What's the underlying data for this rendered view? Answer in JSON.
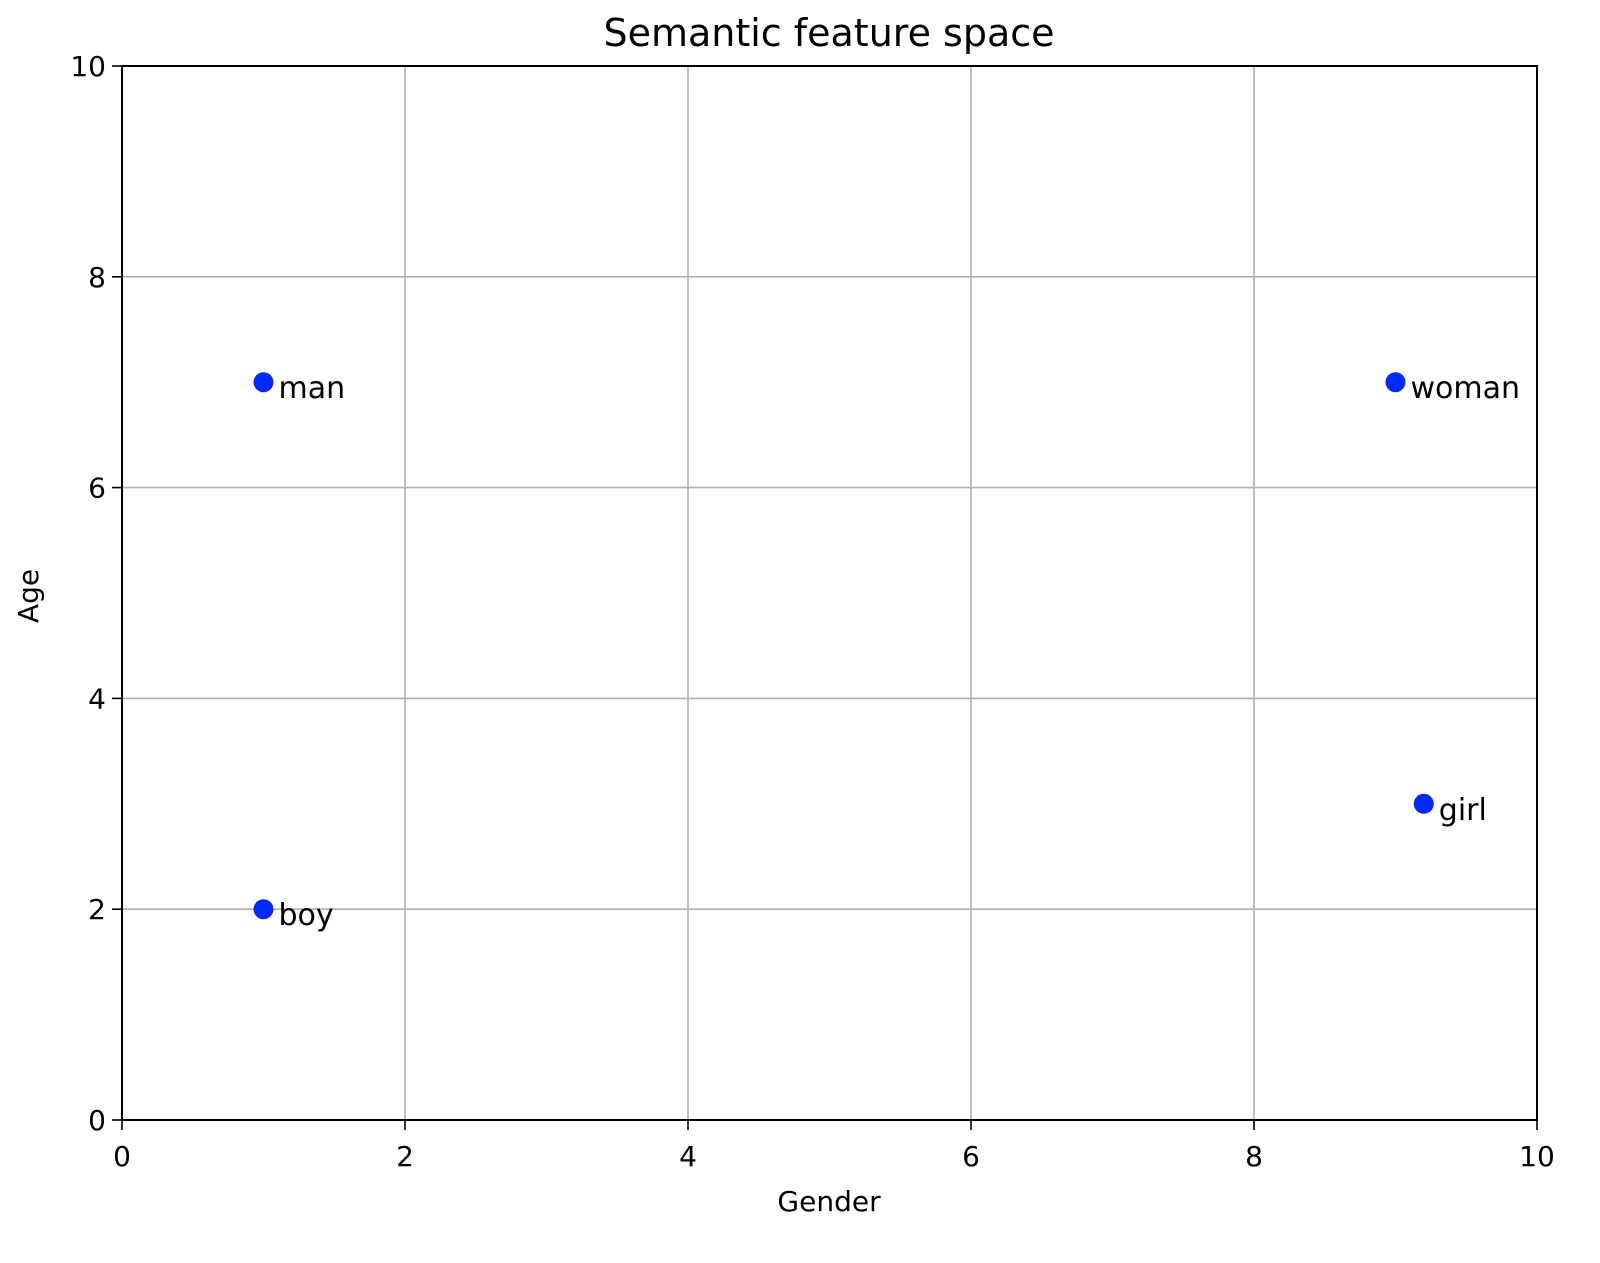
{
  "chart_data": {
    "type": "scatter",
    "title": "Semantic feature space",
    "x_label": "Gender",
    "y_label": "Age",
    "x": [
      1,
      9,
      1,
      9.2
    ],
    "values": [
      7,
      7,
      2,
      3
    ],
    "labels": [
      "man",
      "woman",
      "boy",
      "girl"
    ],
    "color": "#0028ff",
    "xlim": [
      0,
      10
    ],
    "xticks": [
      0,
      2,
      4,
      6,
      8,
      10
    ],
    "ylim": [
      0,
      10
    ],
    "yticks": [
      0,
      2,
      4,
      6,
      8,
      10
    ],
    "grid": true
  }
}
